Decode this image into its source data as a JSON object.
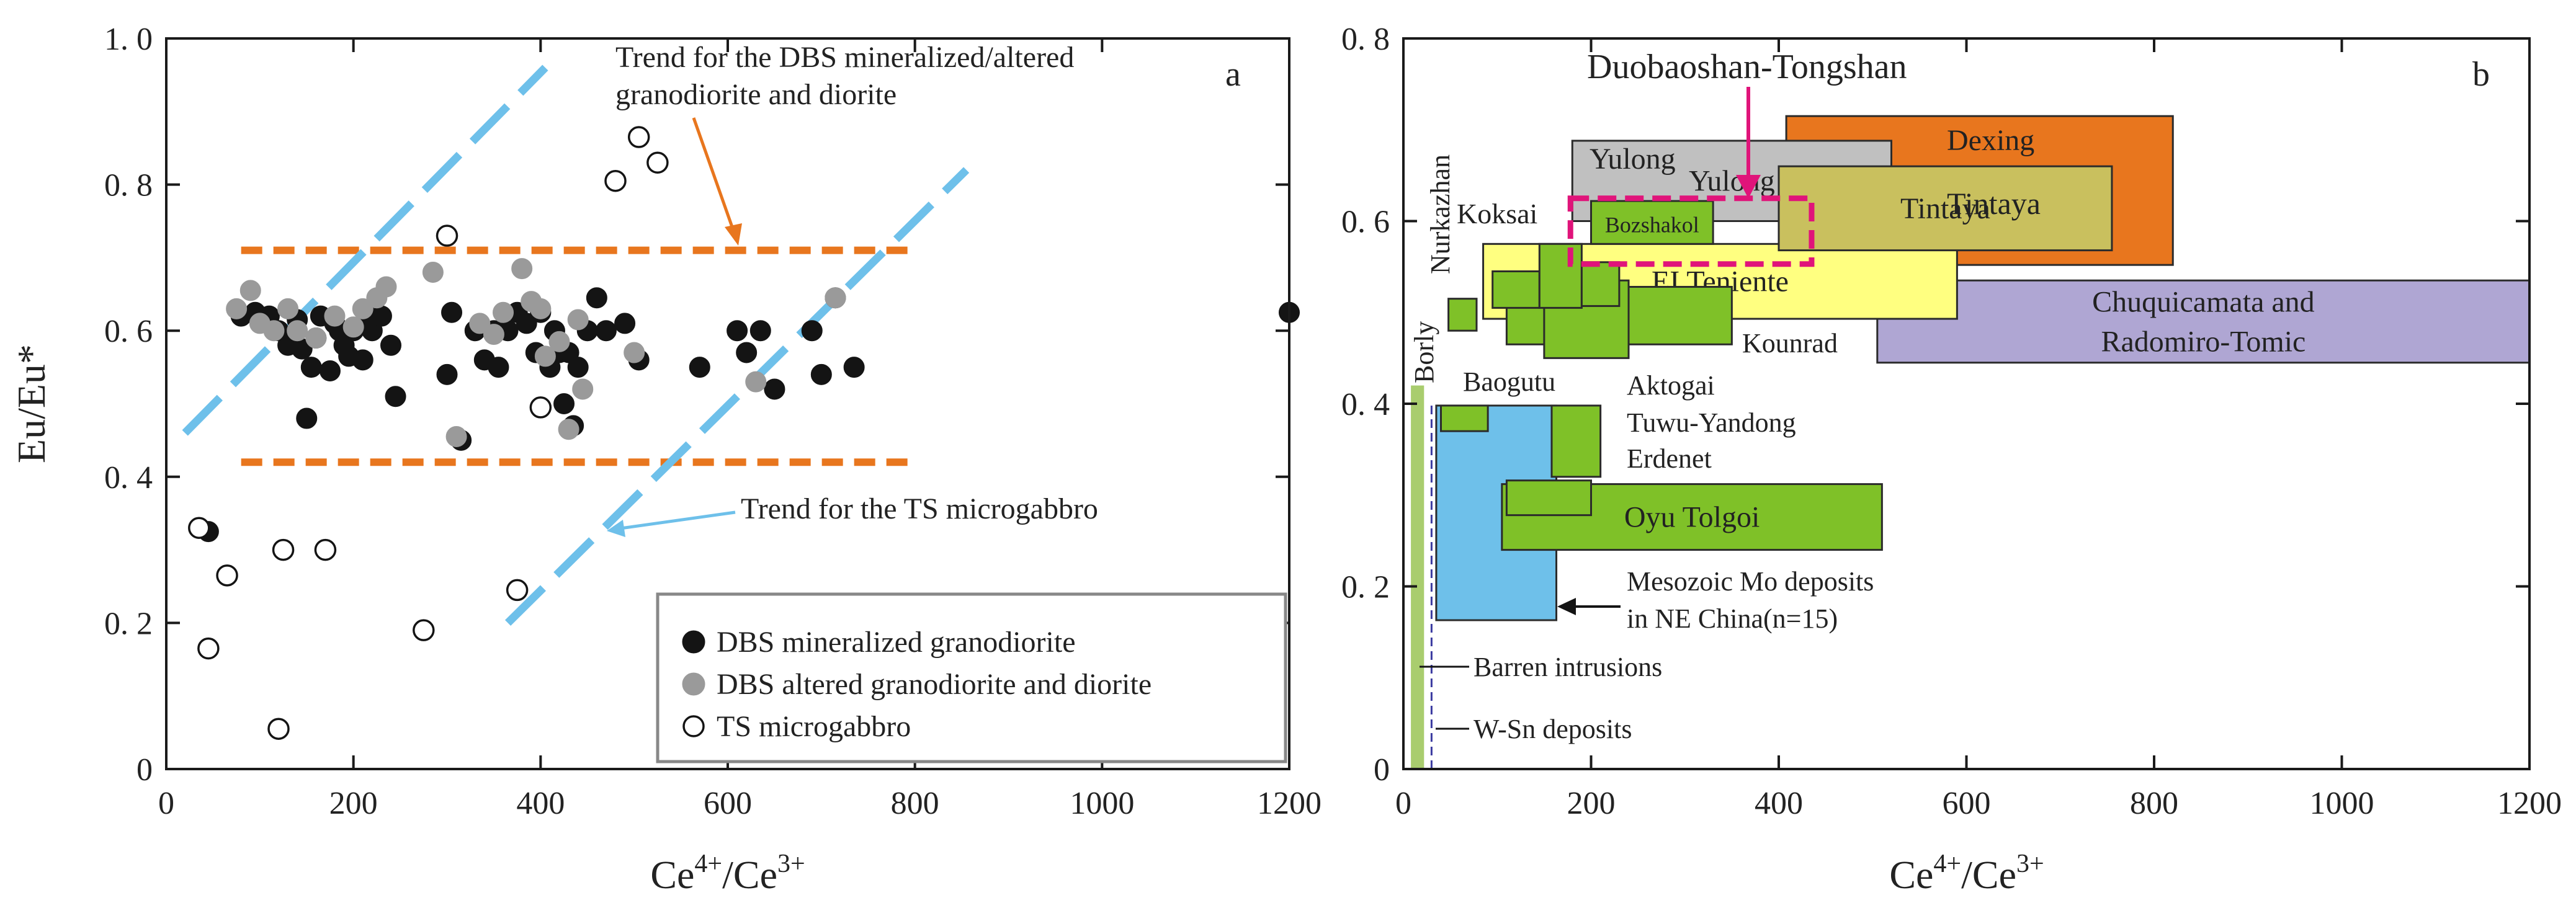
{
  "figure_caption": "",
  "chart_data": [
    {
      "type": "scatter",
      "panel": "a",
      "xlabel": "Ce4+/Ce3+",
      "xlabel_base": "Ce",
      "xlabel_sup1": "4+",
      "xlabel_mid": "/Ce",
      "xlabel_sup2": "3+",
      "ylabel": "Eu/Eu*",
      "xlim": [
        0,
        1200
      ],
      "ylim": [
        0,
        1.0
      ],
      "xticks": [
        0,
        200,
        400,
        600,
        800,
        1000,
        1200
      ],
      "xtick_labels": [
        "0",
        "200",
        "400",
        "600",
        "800",
        "1000",
        "1200"
      ],
      "yticks": [
        0,
        0.2,
        0.4,
        0.6,
        0.8,
        1.0
      ],
      "ytick_labels": [
        "0",
        "0. 2",
        "0. 4",
        "0. 6",
        "0. 8",
        "1. 0"
      ],
      "annotations": {
        "trend_dbs_line1": "Trend for the DBS mineralized/altered",
        "trend_dbs_line2": "granodiorite and diorite",
        "trend_ts": "Trend for the TS microgabbro"
      },
      "trend_lines": [
        {
          "name": "DBS upper bound",
          "color": "#e8761e",
          "x": [
            80,
            800
          ],
          "y": [
            0.71,
            0.71
          ]
        },
        {
          "name": "DBS lower bound",
          "color": "#e8761e",
          "x": [
            80,
            800
          ],
          "y": [
            0.42,
            0.42
          ]
        },
        {
          "name": "TS trend left",
          "color": "#6ec0ea",
          "x": [
            20,
            405
          ],
          "y": [
            0.46,
            0.96
          ]
        },
        {
          "name": "TS trend right",
          "color": "#6ec0ea",
          "x": [
            365,
            855
          ],
          "y": [
            0.2,
            0.82
          ]
        }
      ],
      "legend": {
        "position": "bottom-right",
        "entries": [
          "DBS mineralized granodiorite",
          "DBS altered granodiorite and diorite",
          "TS microgabbro"
        ]
      },
      "series": [
        {
          "name": "DBS mineralized granodiorite",
          "marker": "filled-black",
          "color": "#141414",
          "points": [
            [
              45,
              0.325
            ],
            [
              80,
              0.62
            ],
            [
              95,
              0.625
            ],
            [
              110,
              0.62
            ],
            [
              120,
              0.6
            ],
            [
              130,
              0.58
            ],
            [
              140,
              0.615
            ],
            [
              145,
              0.575
            ],
            [
              150,
              0.48
            ],
            [
              155,
              0.55
            ],
            [
              160,
              0.59
            ],
            [
              165,
              0.62
            ],
            [
              175,
              0.545
            ],
            [
              180,
              0.61
            ],
            [
              185,
              0.6
            ],
            [
              190,
              0.58
            ],
            [
              195,
              0.565
            ],
            [
              200,
              0.6
            ],
            [
              210,
              0.56
            ],
            [
              215,
              0.62
            ],
            [
              220,
              0.6
            ],
            [
              230,
              0.62
            ],
            [
              240,
              0.58
            ],
            [
              245,
              0.51
            ],
            [
              300,
              0.54
            ],
            [
              305,
              0.625
            ],
            [
              315,
              0.45
            ],
            [
              330,
              0.6
            ],
            [
              340,
              0.56
            ],
            [
              350,
              0.6
            ],
            [
              355,
              0.55
            ],
            [
              365,
              0.6
            ],
            [
              375,
              0.625
            ],
            [
              385,
              0.61
            ],
            [
              395,
              0.57
            ],
            [
              400,
              0.625
            ],
            [
              410,
              0.55
            ],
            [
              415,
              0.6
            ],
            [
              420,
              0.57
            ],
            [
              425,
              0.5
            ],
            [
              430,
              0.57
            ],
            [
              435,
              0.47
            ],
            [
              440,
              0.55
            ],
            [
              450,
              0.6
            ],
            [
              460,
              0.645
            ],
            [
              470,
              0.6
            ],
            [
              490,
              0.61
            ],
            [
              505,
              0.56
            ],
            [
              570,
              0.55
            ],
            [
              610,
              0.6
            ],
            [
              620,
              0.57
            ],
            [
              635,
              0.6
            ],
            [
              650,
              0.52
            ],
            [
              690,
              0.6
            ],
            [
              700,
              0.54
            ],
            [
              715,
              0.645
            ],
            [
              735,
              0.55
            ],
            [
              1200,
              0.625
            ]
          ]
        },
        {
          "name": "DBS altered granodiorite and diorite",
          "marker": "filled-grey",
          "color": "#9a9a9a",
          "points": [
            [
              75,
              0.63
            ],
            [
              90,
              0.655
            ],
            [
              100,
              0.61
            ],
            [
              115,
              0.6
            ],
            [
              130,
              0.63
            ],
            [
              140,
              0.6
            ],
            [
              160,
              0.59
            ],
            [
              180,
              0.62
            ],
            [
              200,
              0.605
            ],
            [
              210,
              0.63
            ],
            [
              225,
              0.645
            ],
            [
              235,
              0.66
            ],
            [
              285,
              0.68
            ],
            [
              310,
              0.455
            ],
            [
              335,
              0.61
            ],
            [
              350,
              0.595
            ],
            [
              360,
              0.625
            ],
            [
              380,
              0.685
            ],
            [
              390,
              0.64
            ],
            [
              400,
              0.63
            ],
            [
              405,
              0.565
            ],
            [
              420,
              0.585
            ],
            [
              430,
              0.465
            ],
            [
              440,
              0.615
            ],
            [
              445,
              0.52
            ],
            [
              500,
              0.57
            ],
            [
              630,
              0.53
            ],
            [
              715,
              0.645
            ]
          ]
        },
        {
          "name": "TS microgabbro",
          "marker": "open-circle",
          "color": "#141414",
          "points": [
            [
              35,
              0.33
            ],
            [
              45,
              0.165
            ],
            [
              65,
              0.265
            ],
            [
              120,
              0.055
            ],
            [
              125,
              0.3
            ],
            [
              170,
              0.3
            ],
            [
              275,
              0.19
            ],
            [
              300,
              0.73
            ],
            [
              375,
              0.245
            ],
            [
              400,
              0.495
            ],
            [
              480,
              0.805
            ],
            [
              505,
              0.865
            ],
            [
              525,
              0.83
            ]
          ]
        }
      ]
    },
    {
      "type": "range-boxes",
      "panel": "b",
      "xlabel": "Ce4+/Ce3+",
      "xlabel_base": "Ce",
      "xlabel_sup1": "4+",
      "xlabel_mid": "/Ce",
      "xlabel_sup2": "3+",
      "ylabel": "",
      "xlim": [
        0,
        1200
      ],
      "ylim": [
        0,
        0.8
      ],
      "xticks": [
        0,
        200,
        400,
        600,
        800,
        1000,
        1200
      ],
      "xtick_labels": [
        "0",
        "200",
        "400",
        "600",
        "800",
        "1000",
        "1200"
      ],
      "yticks": [
        0,
        0.2,
        0.4,
        0.6,
        0.8
      ],
      "ytick_labels": [
        "0",
        "0. 2",
        "0. 4",
        "0. 6",
        "0. 8"
      ],
      "title_annotation": "Duobaoshan-Tongshan",
      "boxes": [
        {
          "name": "Chuquicamata and Radomiro-Tomic",
          "label": "Chuquicamata and",
          "label2": "Radomiro-Tomic",
          "color": "#afa6d3",
          "x": [
            505,
            1200
          ],
          "y": [
            0.445,
            0.535
          ]
        },
        {
          "name": "Dexing",
          "label": "Dexing",
          "color": "#e8761e",
          "x": [
            408,
            820
          ],
          "y": [
            0.552,
            0.715
          ]
        },
        {
          "name": "Yulong",
          "label": "Yulong",
          "color": "#c0c0c0",
          "x": [
            180,
            520
          ],
          "y": [
            0.6,
            0.688
          ]
        },
        {
          "name": "EI Teniente",
          "label": "EI  Teniente",
          "color": "#ffff80",
          "x": [
            85,
            590
          ],
          "y": [
            0.493,
            0.575
          ]
        },
        {
          "name": "Tintaya",
          "label": "Tintaya",
          "color": "#c9c05e",
          "x": [
            400,
            755
          ],
          "y": [
            0.568,
            0.66
          ]
        },
        {
          "name": "Mesozoic Mo deposits in NE China",
          "label": "",
          "color": "#6ec0ea",
          "x": [
            35,
            163
          ],
          "y": [
            0.163,
            0.398
          ]
        },
        {
          "name": "Baogutu",
          "label": "",
          "color": "#7fc128",
          "x": [
            40,
            90
          ],
          "y": [
            0.37,
            0.398
          ]
        },
        {
          "name": "Tuwu-Yandong",
          "label": "",
          "color": "#7fc128",
          "x": [
            158,
            210
          ],
          "y": [
            0.32,
            0.398
          ]
        },
        {
          "name": "Oyu Tolgoi",
          "label": "Oyu Tolgoi",
          "color": "#7fc128",
          "x": [
            105,
            510
          ],
          "y": [
            0.24,
            0.312
          ]
        },
        {
          "name": "Erdenet",
          "label": "",
          "color": "#7fc128",
          "x": [
            110,
            200
          ],
          "y": [
            0.278,
            0.316
          ]
        },
        {
          "name": "Borly",
          "label": "",
          "color": "#7fc128",
          "x": [
            48,
            78
          ],
          "y": [
            0.48,
            0.515
          ]
        },
        {
          "name": "Kounrad",
          "label": "",
          "color": "#7fc128",
          "x": [
            110,
            350
          ],
          "y": [
            0.465,
            0.528
          ]
        },
        {
          "name": "Aktogai",
          "label": "",
          "color": "#7fc128",
          "x": [
            150,
            240
          ],
          "y": [
            0.45,
            0.535
          ]
        },
        {
          "name": "Koksai 1",
          "label": "",
          "color": "#7fc128",
          "x": [
            95,
            145
          ],
          "y": [
            0.505,
            0.545
          ]
        },
        {
          "name": "Koksai 2",
          "label": "",
          "color": "#7fc128",
          "x": [
            145,
            190
          ],
          "y": [
            0.505,
            0.575
          ]
        },
        {
          "name": "Koksai 3",
          "label": "",
          "color": "#7fc128",
          "x": [
            190,
            230
          ],
          "y": [
            0.507,
            0.555
          ]
        },
        {
          "name": "Bozshakol",
          "label": "Bozshakol",
          "color": "#7fc128",
          "x": [
            200,
            330
          ],
          "y": [
            0.575,
            0.622
          ]
        },
        {
          "name": "Barren intrusions",
          "label": "",
          "color": "#a9cd6e",
          "x": [
            8,
            22
          ],
          "y": [
            0,
            0.42
          ]
        }
      ],
      "dbs_ts_box": {
        "name": "Duobaoshan-Tongshan",
        "color": "#e0147a",
        "x": [
          178,
          435
        ],
        "y": [
          0.553,
          0.625
        ]
      },
      "labels": {
        "yulong": "Yulong",
        "dexing": "Dexing",
        "tintaya": "Tintaya",
        "koksai": "Koksai",
        "nurkazhan": "Nurkazhan",
        "borly": "Borly",
        "kounrad": "Kounrad",
        "aktogai": "Aktogai",
        "baogutu": "Baogutu",
        "tuwu_yandong": "Tuwu-Yandong",
        "erdenet": "Erdenet",
        "mesozoic_line1": "Mesozoic Mo deposits",
        "mesozoic_line2": "in NE China(n=15)",
        "barren": "Barren intrusions",
        "wsn": "W-Sn deposits"
      }
    }
  ]
}
